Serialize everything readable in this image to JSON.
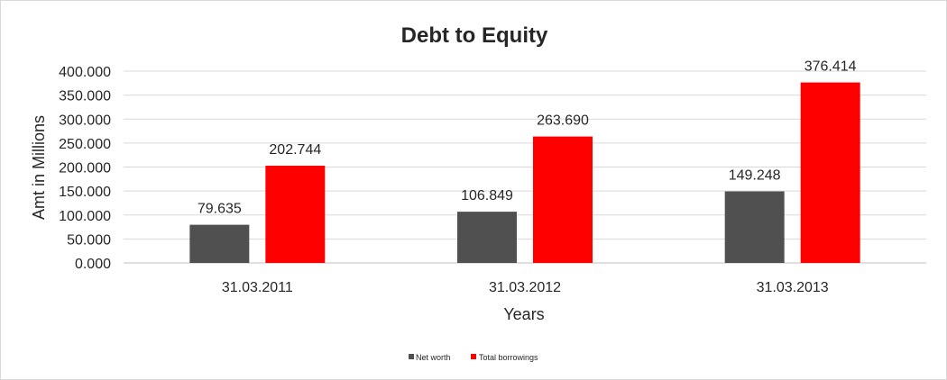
{
  "chart_data": {
    "type": "bar",
    "title": "Debt to Equity",
    "xlabel": "Years",
    "ylabel": "Amt in Millions",
    "categories": [
      "31.03.2011",
      "31.03.2012",
      "31.03.2013"
    ],
    "series": [
      {
        "name": "Net worth",
        "color": "#505050",
        "values": [
          79.635,
          106.849,
          149.248
        ],
        "labels": [
          "79.635",
          "106.849",
          "149.248"
        ]
      },
      {
        "name": "Total borrowings",
        "color": "#ff0000",
        "values": [
          202.744,
          263.69,
          376.414
        ],
        "labels": [
          "202.744",
          "263.690",
          "376.414"
        ]
      }
    ],
    "ylim": [
      0,
      400
    ],
    "yticks": [
      0,
      50,
      100,
      150,
      200,
      250,
      300,
      350,
      400
    ],
    "ytick_labels": [
      "0.000",
      "50.000",
      "100.000",
      "150.000",
      "200.000",
      "250.000",
      "300.000",
      "350.000",
      "400.000"
    ],
    "grid": true,
    "legend_position": "bottom"
  }
}
